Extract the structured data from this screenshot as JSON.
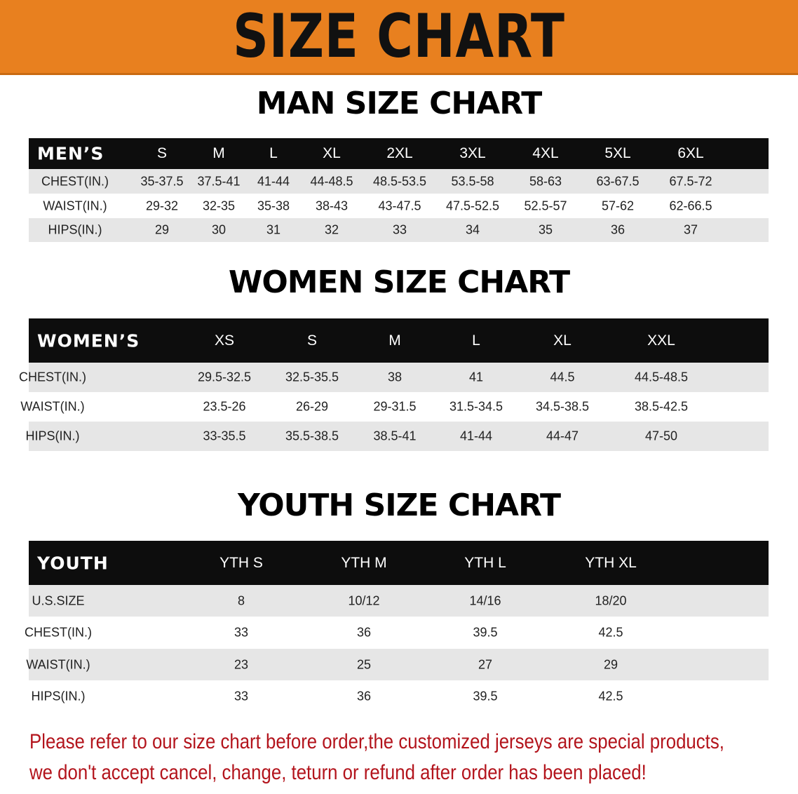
{
  "banner": {
    "title": "SIZE CHART",
    "color": "#e8801f"
  },
  "men": {
    "title": "MAN SIZE CHART",
    "header": [
      "MEN’S",
      "S",
      "M",
      "L",
      "XL",
      "2XL",
      "3XL",
      "4XL",
      "5XL",
      "6XL"
    ],
    "rows": [
      [
        "CHEST(IN.)",
        "35-37.5",
        "37.5-41",
        "41-44",
        "44-48.5",
        "48.5-53.5",
        "53.5-58",
        "58-63",
        "63-67.5",
        "67.5-72"
      ],
      [
        "WAIST(IN.)",
        "29-32",
        "32-35",
        "35-38",
        "38-43",
        "43-47.5",
        "47.5-52.5",
        "52.5-57",
        "57-62",
        "62-66.5"
      ],
      [
        "HIPS(IN.)",
        "29",
        "30",
        "31",
        "32",
        "33",
        "34",
        "35",
        "36",
        "37"
      ]
    ]
  },
  "women": {
    "title": "WOMEN SIZE CHART",
    "header": [
      "WOMEN’S",
      "XS",
      "S",
      "M",
      "L",
      "XL",
      "XXL"
    ],
    "rows": [
      [
        "CHEST(IN.)",
        "29.5-32.5",
        "32.5-35.5",
        "38",
        "41",
        "44.5",
        "44.5-48.5"
      ],
      [
        "WAIST(IN.)",
        "23.5-26",
        "26-29",
        "29-31.5",
        "31.5-34.5",
        "34.5-38.5",
        "38.5-42.5"
      ],
      [
        "HIPS(IN.)",
        "33-35.5",
        "35.5-38.5",
        "38.5-41",
        "41-44",
        "44-47",
        "47-50"
      ]
    ]
  },
  "youth": {
    "title": "YOUTH SIZE CHART",
    "header": [
      "YOUTH",
      "YTH S",
      "YTH M",
      "YTH L",
      "YTH XL"
    ],
    "rows": [
      [
        "U.S.SIZE",
        "8",
        "10/12",
        "14/16",
        "18/20"
      ],
      [
        "CHEST(IN.)",
        "33",
        "36",
        "39.5",
        "42.5"
      ],
      [
        "WAIST(IN.)",
        "23",
        "25",
        "27",
        "29"
      ],
      [
        "HIPS(IN.)",
        "33",
        "36",
        "39.5",
        "42.5"
      ]
    ]
  },
  "notice": {
    "line1": "Please refer to our size chart before order,the customized jerseys are special products,",
    "line2": "we don't accept cancel, change, teturn or refund after order has been placed!",
    "color": "#b3141c"
  }
}
